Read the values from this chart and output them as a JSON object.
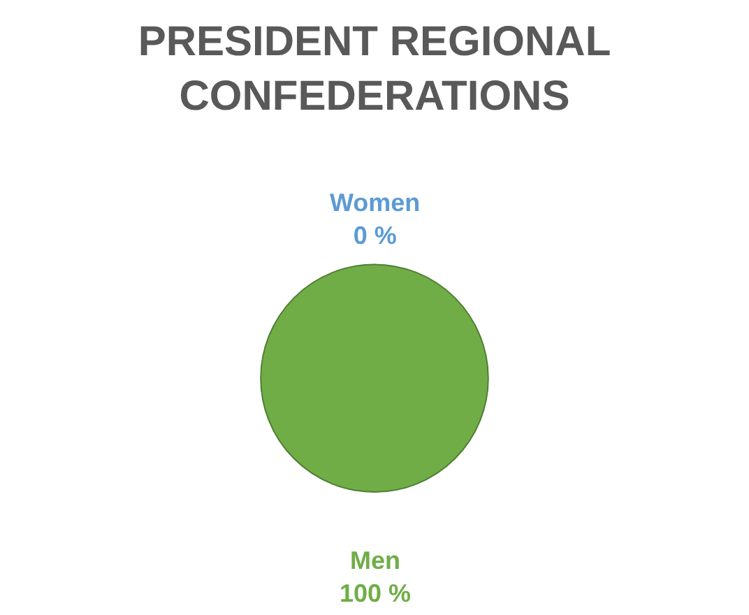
{
  "chart_data": {
    "type": "pie",
    "title": "PRESIDENT REGIONAL\nCONFEDERATIONS",
    "categories": [
      "Women",
      "Men"
    ],
    "values": [
      0,
      100
    ],
    "value_labels": [
      "0 %",
      "100 %"
    ],
    "colors": [
      "#5b9bd5",
      "#70ad47"
    ],
    "legend": false
  }
}
